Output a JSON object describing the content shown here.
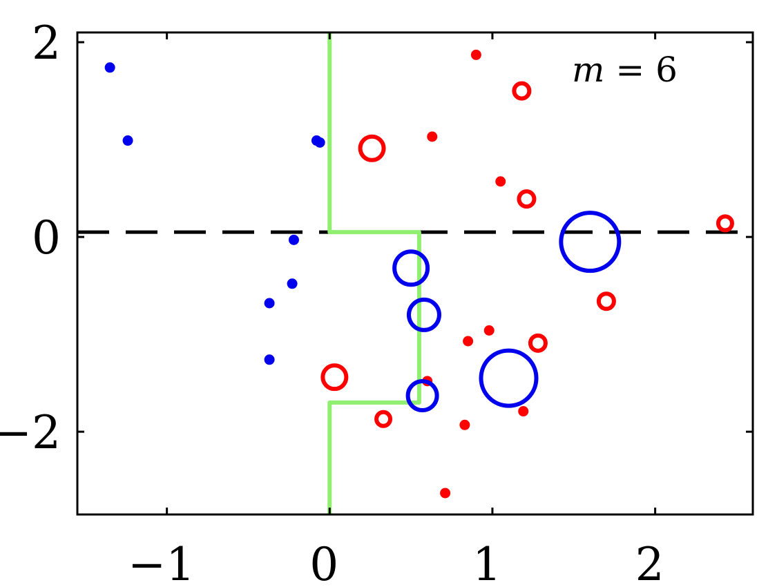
{
  "chart_data": {
    "type": "scatter",
    "title": "",
    "xlabel": "",
    "ylabel": "",
    "xlim": [
      -1.55,
      2.6
    ],
    "ylim": [
      -2.85,
      2.1
    ],
    "xticks": [
      -1,
      0,
      1,
      2
    ],
    "yticks": [
      -2,
      0,
      2
    ],
    "xtick_labels": [
      "−1",
      "0",
      "1",
      "2"
    ],
    "ytick_labels": [
      "−2",
      "0",
      "2"
    ],
    "grid": false,
    "annotation": {
      "var": "m",
      "op": " = ",
      "value": "6"
    },
    "colors": {
      "blue": "#0000ee",
      "red": "#ff0000",
      "boundary": "#90ee70",
      "axis": "#000000"
    },
    "reference_line": {
      "y": 0.05,
      "style": "dashed"
    },
    "decision_boundary": {
      "x": [
        0.0,
        0.0,
        0.55,
        0.55,
        0.0,
        0.0
      ],
      "y": [
        2.1,
        0.05,
        0.05,
        -1.7,
        -1.7,
        -2.85
      ]
    },
    "series": [
      {
        "color": "blue",
        "marker": "dot",
        "x": [
          -1.35,
          -1.24,
          -0.08,
          -0.06,
          -0.22,
          -0.23,
          -0.37,
          -0.37
        ],
        "y": [
          1.74,
          0.99,
          0.99,
          0.97,
          -0.03,
          -0.48,
          -0.68,
          -1.26
        ]
      },
      {
        "color": "red",
        "marker": "dot",
        "x": [
          0.9,
          0.63,
          1.05,
          0.85,
          0.98,
          0.6,
          1.19,
          0.83,
          0.71
        ],
        "y": [
          1.87,
          1.03,
          0.57,
          -1.07,
          -0.96,
          -1.48,
          -1.79,
          -1.93,
          -2.63
        ]
      },
      {
        "color": "blue",
        "marker": "circle",
        "x": [
          0.5,
          0.58,
          0.57,
          1.1,
          1.6
        ],
        "y": [
          -0.32,
          -0.8,
          -1.63,
          -1.45,
          -0.05
        ],
        "sizes": [
          24,
          22,
          21,
          40,
          42
        ]
      },
      {
        "color": "red",
        "marker": "circle",
        "x": [
          0.26,
          0.03,
          1.18,
          1.21,
          1.7,
          1.28,
          0.33,
          2.43
        ],
        "y": [
          0.91,
          -1.44,
          1.5,
          0.39,
          -0.66,
          -1.09,
          -1.87,
          0.14
        ],
        "sizes": [
          17,
          17,
          11,
          11,
          11,
          11,
          10,
          10
        ]
      }
    ]
  }
}
